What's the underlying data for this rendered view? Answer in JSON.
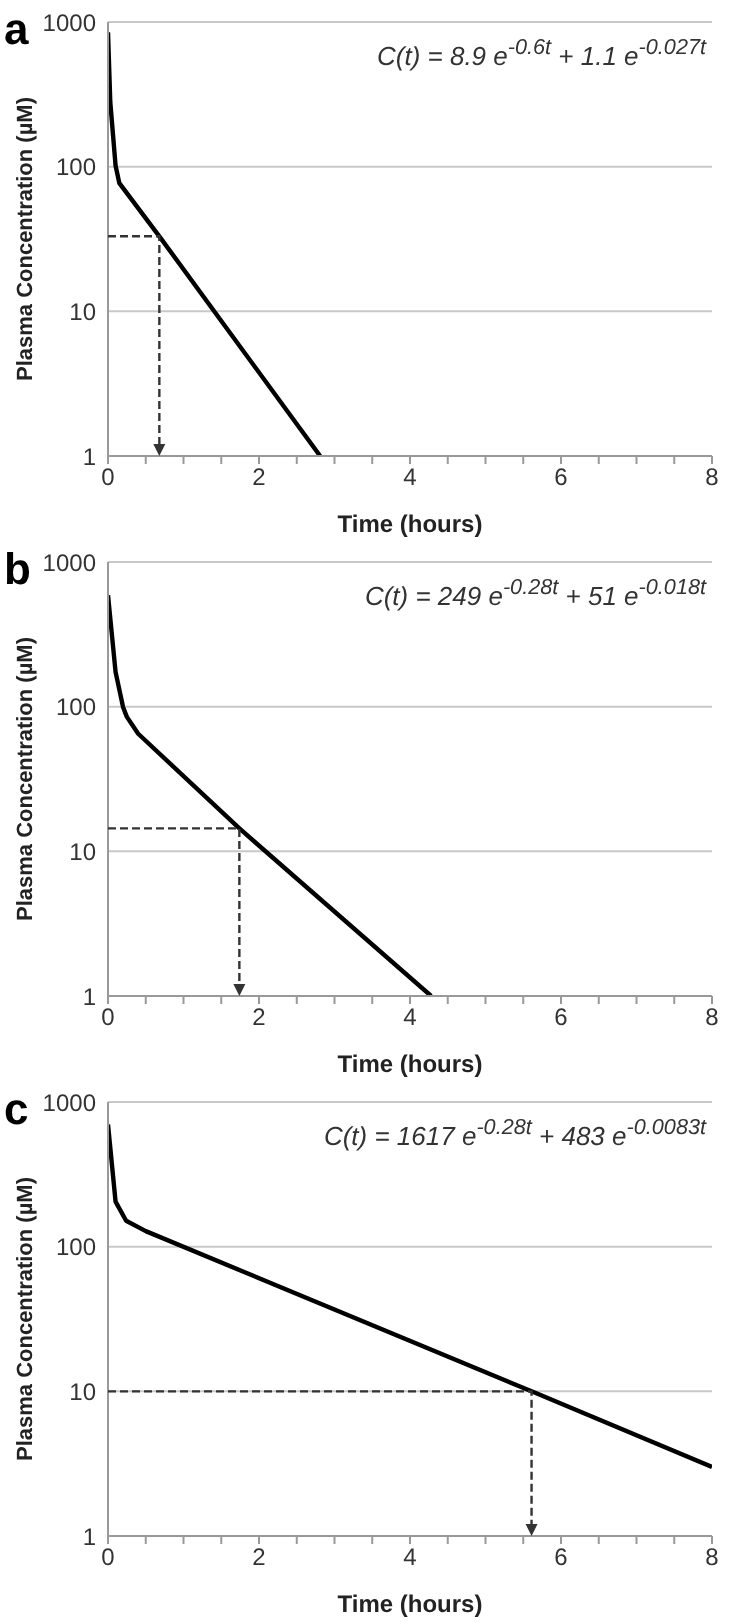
{
  "chart_data": [
    {
      "type": "line",
      "title": "a",
      "xlabel": "Time (hours)",
      "ylabel": "Plasma Concentration (µM)",
      "annotations": [
        "C(t) = 8.9 e$^{-0.6t}$ + 1.1 e$^{-0.027t}$"
      ],
      "xlim": [
        0,
        8
      ],
      "xticks": [
        0,
        {
          "value": 0.5,
          "label": null
        },
        {
          "value": 1,
          "label": null
        },
        {
          "value": 1.5,
          "label": null
        },
        2,
        {
          "value": 2.5,
          "label": null
        },
        {
          "value": 3,
          "label": null
        },
        {
          "value": 3.5,
          "label": null
        },
        4,
        {
          "value": 4.5,
          "label": null
        },
        {
          "value": 5,
          "label": null
        },
        {
          "value": 5.5,
          "label": null
        },
        6,
        {
          "value": 6.5,
          "label": null
        },
        {
          "value": 7,
          "label": null
        },
        {
          "value": 7.5,
          "label": null
        },
        8
      ],
      "ylim": [
        1,
        1000
      ],
      "yticks": [
        1,
        10,
        100,
        1000
      ],
      "log": "y",
      "grid": "y",
      "series": [
        {
          "color": "#000000",
          "x": [
            0,
            0.03,
            0.1,
            0.15,
            0.2,
            0.68,
            2.81
          ],
          "values": [
            850,
            280,
            102,
            77,
            71,
            33,
            1
          ]
        }
      ]
    },
    {
      "type": "line",
      "title": "b",
      "xlabel": "Time (hours)",
      "ylabel": "Plasma Concentration (µM)",
      "annotations": [
        "C(t) = 249 e$^{-0.28t}$ + 51 e$^{-0.018t}$"
      ],
      "xlim": [
        0,
        8
      ],
      "xticks": [
        0,
        {
          "value": 0.5,
          "label": null
        },
        {
          "value": 1,
          "label": null
        },
        {
          "value": 1.5,
          "label": null
        },
        2,
        {
          "value": 2.5,
          "label": null
        },
        {
          "value": 3,
          "label": null
        },
        {
          "value": 3.5,
          "label": null
        },
        4,
        {
          "value": 4.5,
          "label": null
        },
        {
          "value": 5,
          "label": null
        },
        {
          "value": 5.5,
          "label": null
        },
        6,
        {
          "value": 6.5,
          "label": null
        },
        {
          "value": 7,
          "label": null
        },
        {
          "value": 7.5,
          "label": null
        },
        8
      ],
      "ylim": [
        1,
        1000
      ],
      "yticks": [
        1,
        10,
        100,
        1000
      ],
      "log": "y",
      "grid": "y",
      "series": [
        {
          "color": "#000000",
          "x": [
            0,
            0.1,
            0.2,
            0.25,
            0.4,
            1.74,
            4.28
          ],
          "values": [
            590,
            174,
            99,
            85,
            65,
            14.4,
            1
          ]
        }
      ]
    },
    {
      "type": "line",
      "title": "c",
      "xlabel": "Time (hours)",
      "ylabel": "Plasma Concentration (µM)",
      "annotations": [
        "C(t) = 1617 e$^{-0.28t}$ + 483 e$^{-0.0083t}$"
      ],
      "xlim": [
        0,
        8
      ],
      "xticks": [
        0,
        {
          "value": 0.5,
          "label": null
        },
        {
          "value": 1,
          "label": null
        },
        {
          "value": 1.5,
          "label": null
        },
        2,
        {
          "value": 2.5,
          "label": null
        },
        {
          "value": 3,
          "label": null
        },
        {
          "value": 3.5,
          "label": null
        },
        4,
        {
          "value": 4.5,
          "label": null
        },
        {
          "value": 5,
          "label": null
        },
        {
          "value": 5.5,
          "label": null
        },
        6,
        {
          "value": 6.5,
          "label": null
        },
        {
          "value": 7,
          "label": null
        },
        {
          "value": 7.5,
          "label": null
        },
        8
      ],
      "ylim": [
        1,
        1000
      ],
      "yticks": [
        1,
        10,
        100,
        1000
      ],
      "log": "y",
      "grid": "y",
      "series": [
        {
          "color": "#000000",
          "x": [
            0,
            0.1,
            0.24,
            0.5,
            5.61,
            8
          ],
          "values": [
            700,
            205,
            151,
            128,
            10,
            3
          ]
        }
      ]
    }
  ]
}
